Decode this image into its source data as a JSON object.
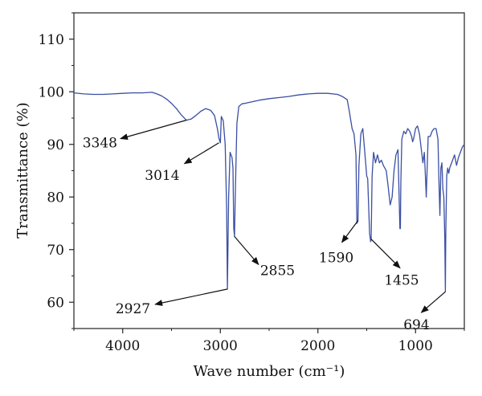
{
  "chart_data": {
    "type": "line",
    "title": "",
    "xlabel": "Wave number (cm⁻¹)",
    "ylabel": "Transmittance (%)",
    "xlim": [
      4500,
      500
    ],
    "ylim": [
      55,
      115
    ],
    "x_reversed": true,
    "x_ticks": [
      4000,
      3000,
      2000,
      1000
    ],
    "y_ticks": [
      60,
      70,
      80,
      90,
      100,
      110
    ],
    "grid": false,
    "legend": "none",
    "line_color": "#3a4fa3",
    "series": [
      {
        "name": "",
        "x": [
          4500,
          4400,
          4300,
          4200,
          4100,
          4000,
          3900,
          3800,
          3700,
          3650,
          3600,
          3550,
          3500,
          3450,
          3400,
          3348,
          3300,
          3250,
          3200,
          3150,
          3100,
          3060,
          3030,
          3014,
          3000,
          2990,
          2970,
          2950,
          2935,
          2927,
          2915,
          2900,
          2880,
          2870,
          2862,
          2855,
          2845,
          2830,
          2810,
          2780,
          2750,
          2700,
          2600,
          2500,
          2400,
          2300,
          2200,
          2100,
          2000,
          1900,
          1800,
          1750,
          1700,
          1680,
          1650,
          1630,
          1610,
          1600,
          1590,
          1580,
          1560,
          1540,
          1520,
          1500,
          1490,
          1470,
          1460,
          1455,
          1445,
          1430,
          1410,
          1390,
          1370,
          1350,
          1330,
          1300,
          1280,
          1260,
          1240,
          1220,
          1200,
          1180,
          1160,
          1155,
          1150,
          1140,
          1120,
          1100,
          1080,
          1060,
          1040,
          1030,
          1020,
          1000,
          980,
          960,
          940,
          925,
          910,
          900,
          890,
          870,
          850,
          830,
          810,
          790,
          770,
          760,
          750,
          740,
          730,
          720,
          710,
          700,
          694,
          690,
          680,
          670,
          660,
          650,
          640,
          620,
          600,
          580,
          560,
          540,
          520,
          500
        ],
        "y": [
          99.8,
          99.6,
          99.5,
          99.5,
          99.6,
          99.7,
          99.8,
          99.8,
          99.9,
          99.6,
          99.2,
          98.6,
          97.8,
          96.8,
          95.6,
          94.6,
          94.8,
          95.5,
          96.3,
          96.8,
          96.5,
          95.5,
          93,
          91.2,
          90.3,
          95.3,
          94.5,
          90,
          78,
          62.5,
          80,
          88.5,
          87.5,
          85.5,
          74,
          72.5,
          82,
          94,
          97.2,
          97.7,
          97.8,
          98,
          98.4,
          98.7,
          98.9,
          99.1,
          99.4,
          99.6,
          99.7,
          99.7,
          99.5,
          99.1,
          98.5,
          96.5,
          93,
          92,
          88,
          75,
          75.5,
          86,
          92,
          93,
          88.5,
          84,
          83.5,
          73,
          71.5,
          72,
          84,
          88.5,
          86.5,
          88,
          86.5,
          87,
          86,
          85,
          82,
          78.5,
          80,
          85,
          88,
          89,
          74,
          74,
          83,
          91,
          92.5,
          92,
          93,
          92.5,
          91.5,
          90.5,
          91,
          93,
          93.5,
          92,
          89,
          86.5,
          88.5,
          84.5,
          80,
          91.5,
          91.5,
          92.5,
          93,
          93,
          91,
          83,
          76.5,
          85.5,
          86.5,
          81.5,
          80,
          72,
          62,
          73,
          84,
          85.5,
          84.5,
          85.5,
          86,
          87,
          88,
          86,
          87.5,
          88.5,
          89.5,
          90
        ]
      }
    ],
    "annotations": [
      {
        "text": "3348",
        "x": 3348,
        "y": 94.6
      },
      {
        "text": "3014",
        "x": 3014,
        "y": 90.3
      },
      {
        "text": "2927",
        "x": 2927,
        "y": 62.5
      },
      {
        "text": "2855",
        "x": 2855,
        "y": 72.5
      },
      {
        "text": "1590",
        "x": 1590,
        "y": 75.5
      },
      {
        "text": "1455",
        "x": 1455,
        "y": 72
      },
      {
        "text": "694",
        "x": 694,
        "y": 62
      }
    ]
  }
}
